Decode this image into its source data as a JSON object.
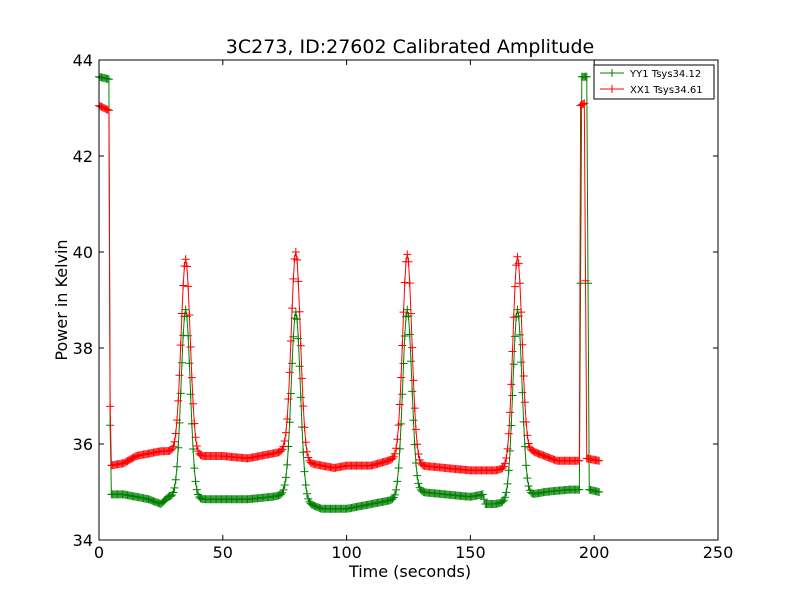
{
  "chart_data": {
    "type": "line",
    "title": "3C273, ID:27602 Calibrated Amplitude",
    "xlabel": "Time (seconds)",
    "ylabel": "Power in Kelvin",
    "xlim": [
      0,
      250
    ],
    "ylim": [
      34,
      44
    ],
    "xticks": [
      0,
      50,
      100,
      150,
      200,
      250
    ],
    "yticks": [
      34,
      36,
      38,
      40,
      42,
      44
    ],
    "xtick_labels": [
      "0",
      "50",
      "100",
      "150",
      "200",
      "250"
    ],
    "ytick_labels": [
      "34",
      "36",
      "38",
      "40",
      "42",
      "44"
    ],
    "grid": false,
    "legend_position": "top-right",
    "marker": "+",
    "series": [
      {
        "name": "YY1 Tsys34.12",
        "color": "#008000",
        "baseline": [
          [
            0,
            43.65
          ],
          [
            4,
            43.6
          ],
          [
            4.6,
            34.95
          ],
          [
            10,
            34.95
          ],
          [
            15,
            34.9
          ],
          [
            20,
            34.85
          ],
          [
            25,
            34.75
          ],
          [
            28,
            34.9
          ],
          [
            40,
            34.85
          ],
          [
            50,
            34.85
          ],
          [
            60,
            34.85
          ],
          [
            70,
            34.9
          ],
          [
            75,
            34.95
          ],
          [
            85,
            34.75
          ],
          [
            90,
            34.65
          ],
          [
            100,
            34.65
          ],
          [
            105,
            34.7
          ],
          [
            110,
            34.75
          ],
          [
            115,
            34.8
          ],
          [
            120,
            34.85
          ],
          [
            130,
            35.0
          ],
          [
            140,
            34.95
          ],
          [
            150,
            34.9
          ],
          [
            155,
            34.95
          ],
          [
            156,
            34.75
          ],
          [
            160,
            34.75
          ],
          [
            165,
            34.8
          ],
          [
            175,
            34.95
          ],
          [
            180,
            35.0
          ],
          [
            190,
            35.05
          ],
          [
            194,
            35.05
          ],
          [
            195,
            43.65
          ],
          [
            197,
            43.65
          ],
          [
            198,
            35.05
          ],
          [
            202,
            35.0
          ]
        ],
        "peaks": [
          {
            "t": 35,
            "height": 38.8
          },
          {
            "t": 79.5,
            "height": 38.75
          },
          {
            "t": 124.5,
            "height": 38.8
          },
          {
            "t": 169,
            "height": 38.8
          }
        ]
      },
      {
        "name": "XX1 Tsys34.61",
        "color": "#ff0000",
        "baseline": [
          [
            0,
            43.05
          ],
          [
            4,
            42.95
          ],
          [
            4.6,
            35.55
          ],
          [
            10,
            35.6
          ],
          [
            15,
            35.75
          ],
          [
            20,
            35.8
          ],
          [
            25,
            35.85
          ],
          [
            30,
            35.85
          ],
          [
            40,
            35.75
          ],
          [
            50,
            35.75
          ],
          [
            60,
            35.7
          ],
          [
            70,
            35.8
          ],
          [
            75,
            35.85
          ],
          [
            85,
            35.6
          ],
          [
            90,
            35.55
          ],
          [
            95,
            35.5
          ],
          [
            100,
            35.55
          ],
          [
            110,
            35.55
          ],
          [
            120,
            35.7
          ],
          [
            125,
            35.7
          ],
          [
            130,
            35.55
          ],
          [
            140,
            35.5
          ],
          [
            150,
            35.45
          ],
          [
            160,
            35.45
          ],
          [
            165,
            35.5
          ],
          [
            175,
            35.85
          ],
          [
            180,
            35.75
          ],
          [
            185,
            35.65
          ],
          [
            190,
            35.65
          ],
          [
            194,
            35.65
          ],
          [
            194.5,
            43.05
          ],
          [
            196,
            43.1
          ],
          [
            197,
            35.7
          ],
          [
            202,
            35.65
          ]
        ],
        "peaks": [
          {
            "t": 35,
            "height": 39.85
          },
          {
            "t": 79.5,
            "height": 40.0
          },
          {
            "t": 124.5,
            "height": 39.95
          },
          {
            "t": 169,
            "height": 39.9
          }
        ]
      }
    ]
  }
}
